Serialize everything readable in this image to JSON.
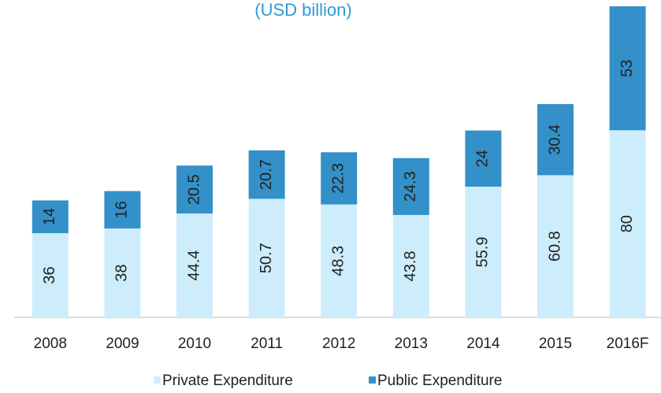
{
  "chart_data": {
    "type": "stacked_bar",
    "title": "(USD billion)",
    "categories": [
      "2008",
      "2009",
      "2010",
      "2011",
      "2012",
      "2013",
      "2014",
      "2015",
      "2016F"
    ],
    "series": [
      {
        "name": "Private Expenditure",
        "color": "#cdedfc",
        "values": [
          36,
          38,
          44.4,
          50.7,
          48.3,
          43.8,
          55.9,
          60.8,
          80
        ]
      },
      {
        "name": "Public Expenditure",
        "color": "#3390c8",
        "values": [
          14,
          16,
          20.5,
          20.7,
          22.3,
          24.3,
          24,
          30.4,
          53
        ]
      }
    ],
    "legend": "bottom"
  }
}
